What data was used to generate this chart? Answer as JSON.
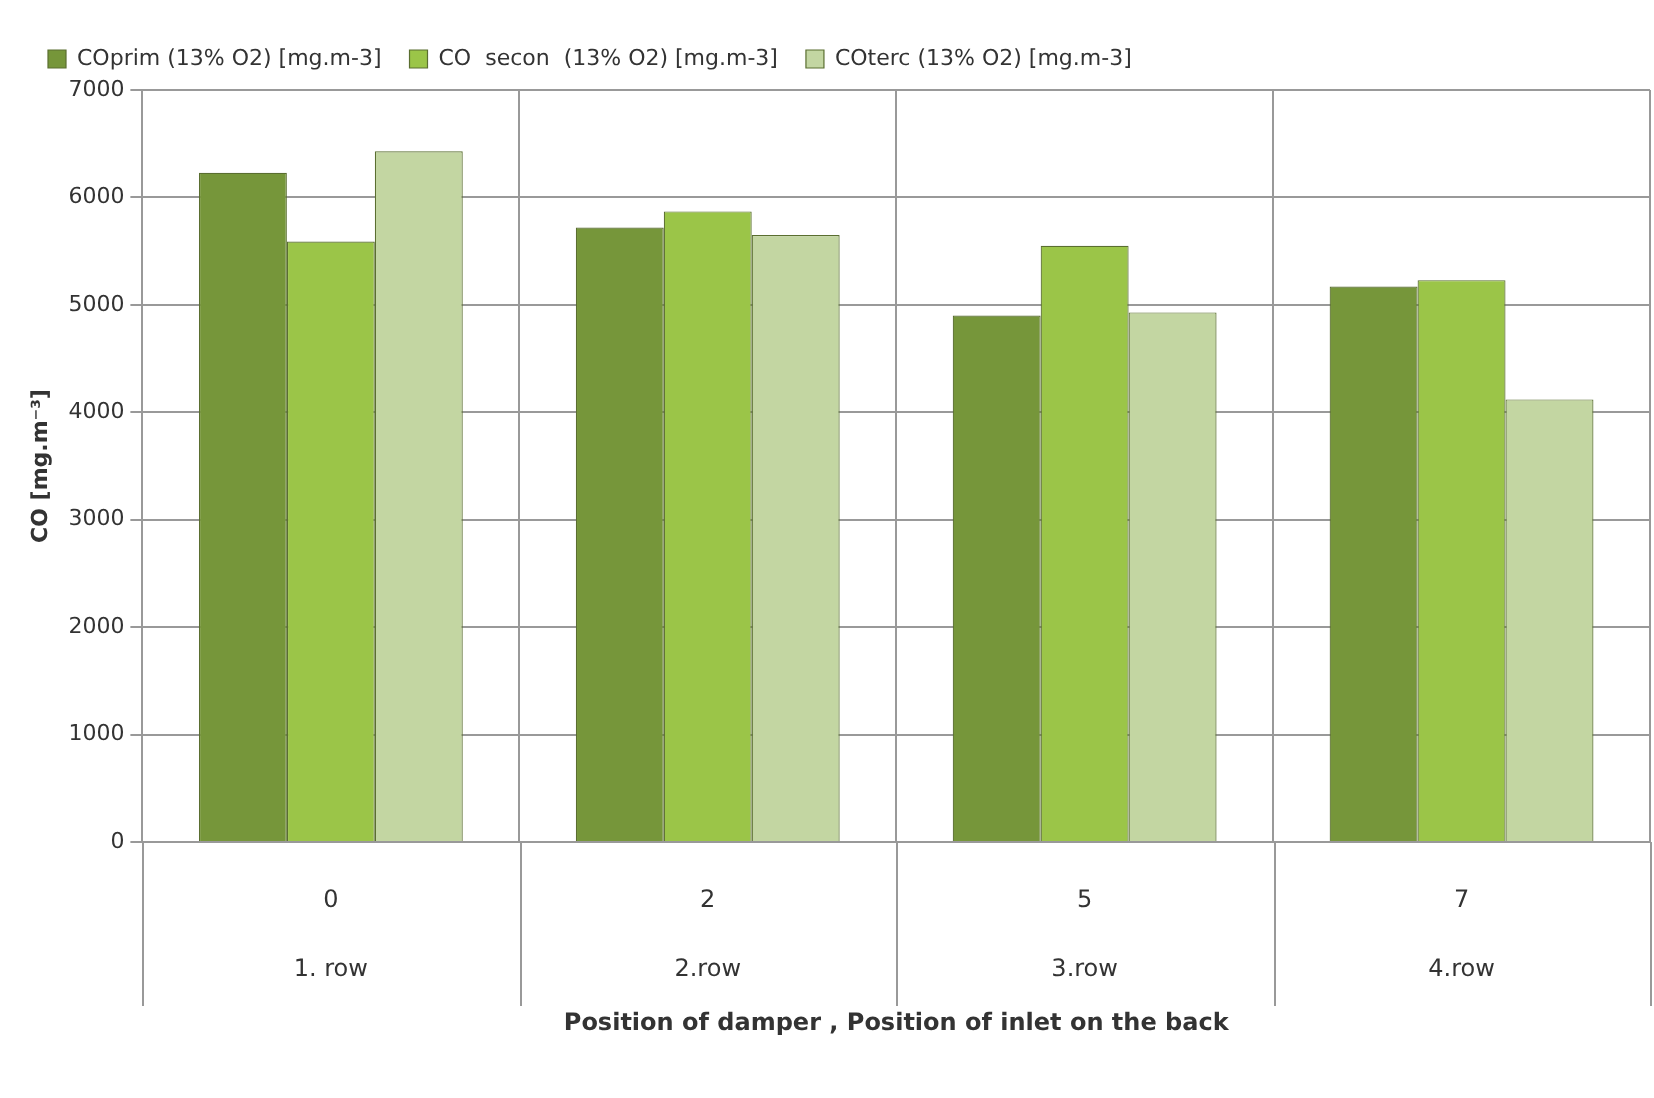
{
  "chart_data": {
    "type": "bar",
    "xlabel": "Position of damper , Position of inlet on the back",
    "ylabel": "CO [mg.m⁻³]",
    "categories": [
      "0",
      "2",
      "5",
      "7"
    ],
    "series": [
      {
        "name": "COprim (13% O2) [mg.m-3]",
        "color": "#76963a",
        "values": [
          6230,
          5720,
          4900,
          5170
        ]
      },
      {
        "name": "CO  secon  (13% O2) [mg.m-3]",
        "color": "#9bc548",
        "values": [
          5590,
          5870,
          5550,
          5230
        ]
      },
      {
        "name": "COterc (13% O2) [mg.m-3]",
        "color": "#c3d6a2",
        "values": [
          6430,
          5650,
          4930,
          4120
        ]
      }
    ],
    "annotations": [
      "1. row",
      "2.row",
      "3.row",
      "4.row"
    ],
    "ylim": [
      0,
      7000
    ],
    "yticks": [
      0,
      1000,
      2000,
      3000,
      4000,
      5000,
      6000,
      7000
    ],
    "grid": true,
    "legend": "top"
  }
}
